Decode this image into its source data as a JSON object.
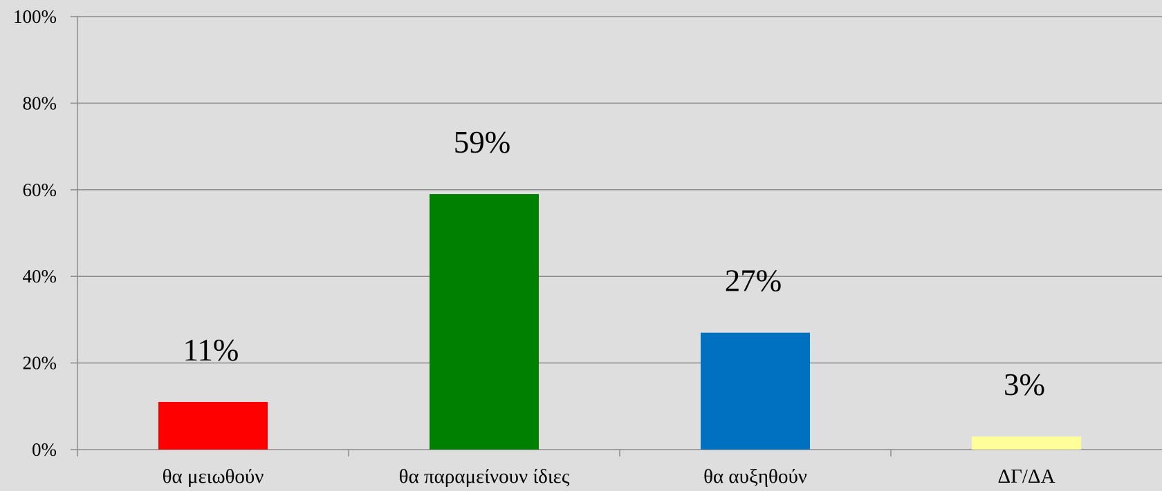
{
  "chart_data": {
    "type": "bar",
    "categories": [
      "θα μειωθούν",
      "θα παραμείνουν ίδιες",
      "θα αυξηθούν",
      "ΔΓ/ΔΑ"
    ],
    "values": [
      11,
      59,
      27,
      3
    ],
    "data_labels": [
      "11%",
      "59%",
      "27%",
      "3%"
    ],
    "colors": [
      "#ff0000",
      "#008000",
      "#0070c0",
      "#ffff99"
    ],
    "ylim": [
      0,
      100
    ],
    "yticks": [
      0,
      20,
      40,
      60,
      80,
      100
    ],
    "ytick_labels": [
      "0%",
      "20%",
      "40%",
      "60%",
      "80%",
      "100%"
    ],
    "grid": true,
    "legend": "none",
    "title": "",
    "xlabel": "",
    "ylabel": ""
  }
}
